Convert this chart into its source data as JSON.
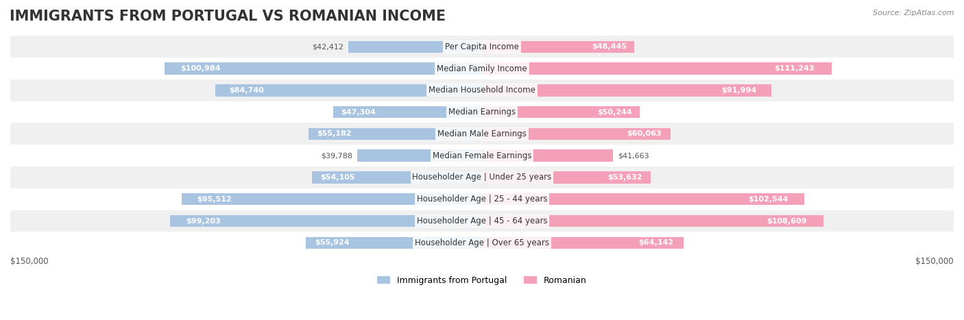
{
  "title": "IMMIGRANTS FROM PORTUGAL VS ROMANIAN INCOME",
  "source": "Source: ZipAtlas.com",
  "categories": [
    "Per Capita Income",
    "Median Family Income",
    "Median Household Income",
    "Median Earnings",
    "Median Male Earnings",
    "Median Female Earnings",
    "Householder Age | Under 25 years",
    "Householder Age | 25 - 44 years",
    "Householder Age | 45 - 64 years",
    "Householder Age | Over 65 years"
  ],
  "portugal_values": [
    42412,
    100984,
    84740,
    47304,
    55182,
    39788,
    54105,
    95512,
    99203,
    55924
  ],
  "romanian_values": [
    48445,
    111243,
    91994,
    50244,
    60063,
    41663,
    53632,
    102544,
    108609,
    64142
  ],
  "portugal_labels": [
    "$42,412",
    "$100,984",
    "$84,740",
    "$47,304",
    "$55,182",
    "$39,788",
    "$54,105",
    "$95,512",
    "$99,203",
    "$55,924"
  ],
  "romanian_labels": [
    "$48,445",
    "$111,243",
    "$91,994",
    "$50,244",
    "$60,063",
    "$41,663",
    "$53,632",
    "$102,544",
    "$108,609",
    "$64,142"
  ],
  "portugal_color_bar": "#a8c4e0",
  "romanian_color_bar": "#f4a0b8",
  "portugal_color_text_inside": "#4a7fb5",
  "romanian_color_text_inside": "#e05080",
  "legend_portugal_color": "#a8c4e0",
  "legend_romanian_color": "#f4a0b8",
  "max_value": 150000,
  "row_bg_color": "#f0f0f0",
  "row_bg_alt_color": "#ffffff",
  "title_fontsize": 15,
  "label_fontsize": 8.5,
  "value_fontsize": 8,
  "axis_label": "$150,000",
  "background_color": "#ffffff"
}
